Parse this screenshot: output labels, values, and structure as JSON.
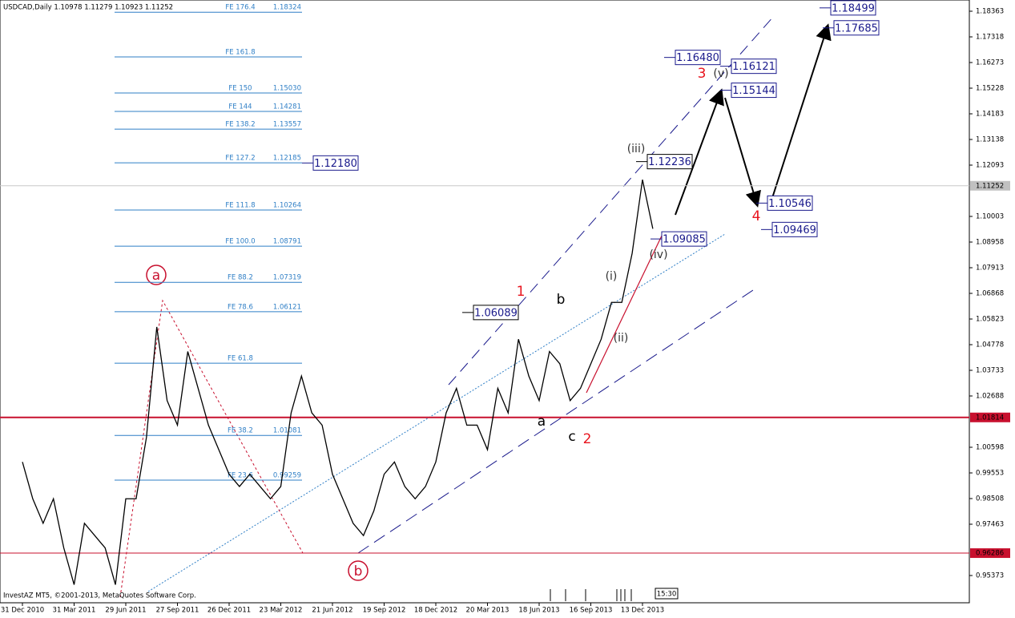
{
  "header": "USDCAD,Daily  1.10978 1.11279 1.10923 1.11252",
  "footer": "InvestAZ MT5, ©2001-2013, MetaQuotes Software Corp.",
  "time_box": "15:30",
  "chart_data": {
    "type": "line",
    "categories": [
      "31 Dec 2010",
      null,
      null,
      null,
      null,
      "31 Mar 2011",
      null,
      null,
      null,
      null,
      "29 Jun 2011",
      null,
      null,
      null,
      null,
      "27 Sep 2011",
      null,
      null,
      null,
      null,
      "26 Dec 2011",
      null,
      null,
      null,
      null,
      "23 Mar 2012",
      null,
      null,
      null,
      null,
      "21 Jun 2012",
      null,
      null,
      null,
      null,
      "19 Sep 2012",
      null,
      null,
      null,
      null,
      "18 Dec 2012",
      null,
      null,
      null,
      null,
      "20 Mar 2013",
      null,
      null,
      null,
      null,
      "18 Jun 2013",
      null,
      null,
      null,
      null,
      "16 Sep 2013",
      null,
      null,
      null,
      null,
      "13 Dec 2013",
      null
    ],
    "series": [
      {
        "color": "#000000",
        "values": [
          1.0,
          0.985,
          0.975,
          0.985,
          0.965,
          0.95,
          0.975,
          0.97,
          0.965,
          0.95,
          0.985,
          0.985,
          1.01,
          1.055,
          1.025,
          1.015,
          1.045,
          1.03,
          1.015,
          1.005,
          0.995,
          0.99,
          0.995,
          0.99,
          0.985,
          0.99,
          1.02,
          1.035,
          1.02,
          1.015,
          0.995,
          0.985,
          0.975,
          0.97,
          0.98,
          0.995,
          1.0,
          0.99,
          0.985,
          0.99,
          1.0,
          1.02,
          1.03,
          1.015,
          1.015,
          1.005,
          1.03,
          1.02,
          1.05,
          1.035,
          1.025,
          1.045,
          1.04,
          1.025,
          1.03,
          1.04,
          1.05,
          1.065,
          1.065,
          1.085,
          1.115,
          1.095
        ]
      }
    ],
    "ylim": [
      0.94263,
      1.1882
    ],
    "yticks": [
      1.18363,
      1.17318,
      1.16273,
      1.15228,
      1.14183,
      1.13138,
      1.12093,
      1.10003,
      1.08958,
      1.07913,
      1.06868,
      1.05823,
      1.04778,
      1.03733,
      1.02688,
      1.00598,
      0.99553,
      0.98508,
      0.97463,
      0.95373
    ],
    "fib_levels": [
      {
        "label": "FE 176.4",
        "value": 1.18324,
        "value_label": "1.18324"
      },
      {
        "label": "FE 161.8",
        "value": 1.16502
      },
      {
        "label": "FE 150",
        "value": 1.1503,
        "value_label": "1.15030"
      },
      {
        "label": "FE 144",
        "value": 1.14281,
        "value_label": "1.14281"
      },
      {
        "label": "FE 138.2",
        "value": 1.13557,
        "value_label": "1.13557"
      },
      {
        "label": "FE 127.2",
        "value": 1.12185,
        "value_label": "1.12185"
      },
      {
        "label": "FE 111.8",
        "value": 1.10264,
        "value_label": "1.10264"
      },
      {
        "label": "FE 100.0",
        "value": 1.08791,
        "value_label": "1.08791"
      },
      {
        "label": "FE 88.2",
        "value": 1.07319,
        "value_label": "1.07319"
      },
      {
        "label": "FE 78.6",
        "value": 1.06121,
        "value_label": "1.06121"
      },
      {
        "label": "FE 61.8",
        "value": 1.04024
      },
      {
        "label": "FE 38.2",
        "value": 1.01081,
        "value_label": "1.01081"
      },
      {
        "label": "FE 23.6",
        "value": 0.99259,
        "value_label": "0.99259"
      }
    ],
    "price_boxes": [
      {
        "value": 1.1218,
        "label": "1.12180"
      },
      {
        "value": 1.12236,
        "label": "1.12236"
      },
      {
        "value": 1.06089,
        "label": "1.06089"
      },
      {
        "value": 1.09085,
        "label": "1.09085"
      },
      {
        "value": 1.1648,
        "label": "1.16480"
      },
      {
        "value": 1.16121,
        "label": "1.16121"
      },
      {
        "value": 1.15144,
        "label": "1.15144"
      },
      {
        "value": 1.10546,
        "label": "1.10546"
      },
      {
        "value": 1.09469,
        "label": "1.09469"
      },
      {
        "value": 1.18499,
        "label": "1.18499"
      },
      {
        "value": 1.17685,
        "label": "1.17685"
      }
    ],
    "levels": [
      {
        "value": 1.01814,
        "label": "1.01814",
        "color": "#c8102e"
      },
      {
        "value": 0.96286,
        "label": "0.96286",
        "color": "#c8102e"
      }
    ],
    "current_price": 1.11252,
    "wave_labels": [
      "a",
      "b",
      "1",
      "2",
      "3",
      "4",
      "a",
      "b",
      "c",
      "(i)",
      "(ii)",
      "(iii)",
      "(iv)",
      "(v)"
    ]
  }
}
